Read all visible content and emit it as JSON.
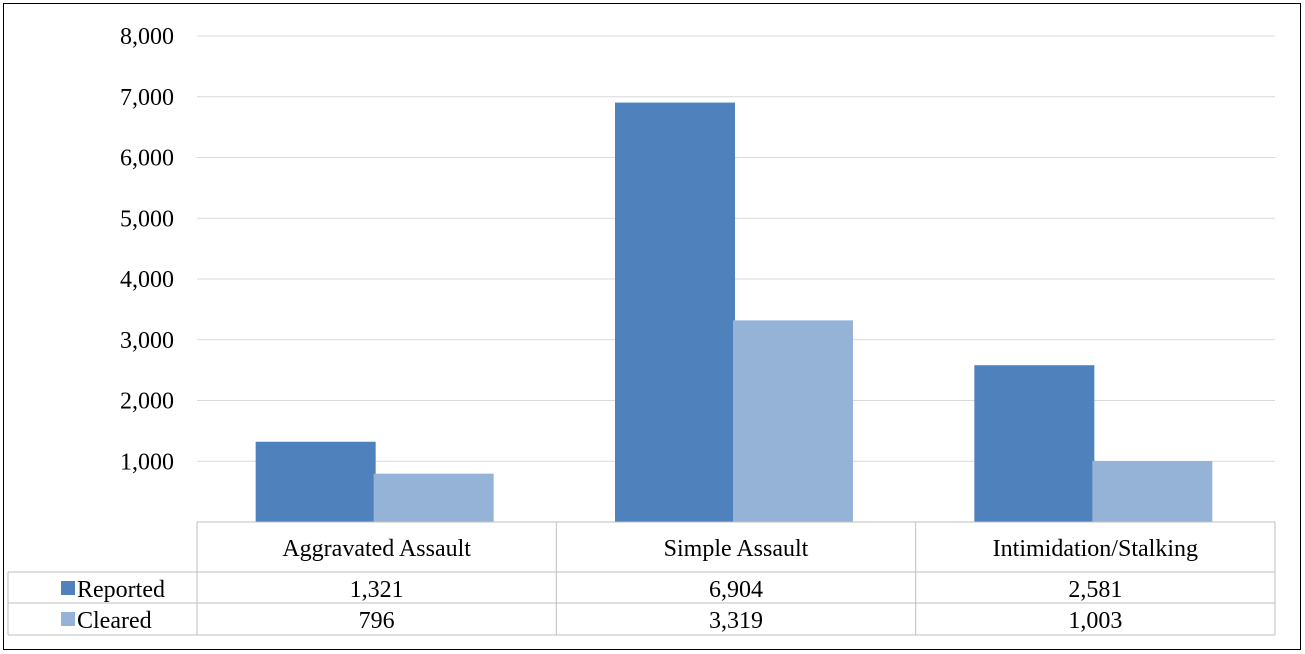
{
  "chart_data": {
    "type": "bar",
    "title": "",
    "xlabel": "",
    "ylabel": "",
    "categories": [
      "Aggravated Assault",
      "Simple Assault",
      "Intimidation/Stalking"
    ],
    "series": [
      {
        "name": "Reported",
        "values": [
          1321,
          6904,
          2581
        ],
        "labels": [
          "1,321",
          "6,904",
          "2,581"
        ],
        "color": "#4f81bd"
      },
      {
        "name": "Cleared",
        "values": [
          796,
          3319,
          1003
        ],
        "labels": [
          "796",
          "3,319",
          "1,003"
        ],
        "color": "#95b3d7"
      }
    ],
    "ylim": [
      0,
      8000
    ],
    "yticks": [
      1000,
      2000,
      3000,
      4000,
      5000,
      6000,
      7000,
      8000
    ],
    "ytick_labels": [
      "1,000",
      "2,000",
      "3,000",
      "4,000",
      "5,000",
      "6,000",
      "7,000",
      "8,000"
    ],
    "grid": true,
    "legend": "data-table"
  }
}
